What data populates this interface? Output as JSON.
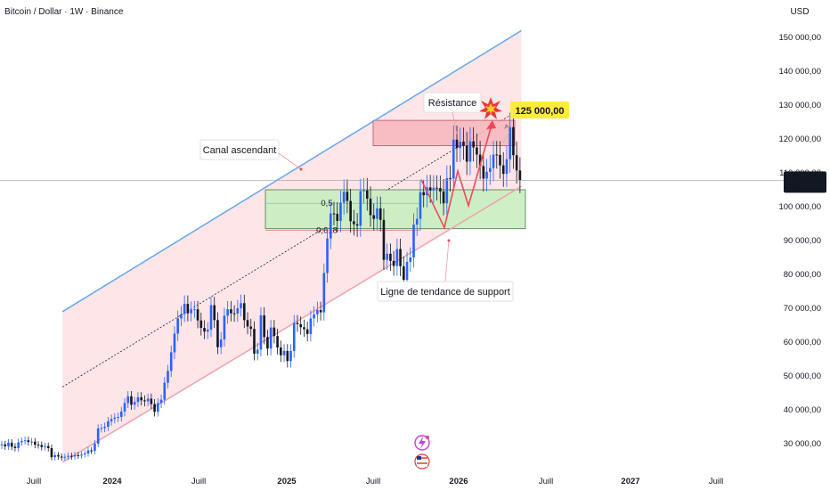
{
  "chart_data": {
    "type": "candlestick",
    "title": "Bitcoin / Dollar · 1W · Binance",
    "currency": "USD",
    "ylim": [
      24000,
      158000
    ],
    "y_ticks": [
      {
        "value": 30000,
        "label": "30 000,00"
      },
      {
        "value": 40000,
        "label": "40 000,00"
      },
      {
        "value": 50000,
        "label": "50 000,00"
      },
      {
        "value": 60000,
        "label": "60 000,00"
      },
      {
        "value": 70000,
        "label": "70 000,00"
      },
      {
        "value": 80000,
        "label": "80 000,00"
      },
      {
        "value": 90000,
        "label": "90 000,00"
      },
      {
        "value": 100000,
        "label": "100 000,00"
      },
      {
        "value": 110000,
        "label": "110 000,00"
      },
      {
        "value": 120000,
        "label": "120 000,00"
      },
      {
        "value": 130000,
        "label": "130 000,00"
      },
      {
        "value": 140000,
        "label": "140 000,00"
      },
      {
        "value": 150000,
        "label": "150 000,00"
      }
    ],
    "x_ticks": [
      {
        "date": "2023-07",
        "label": "Juill",
        "bold": false
      },
      {
        "date": "2024-01",
        "label": "2024",
        "bold": true
      },
      {
        "date": "2024-07",
        "label": "Juill",
        "bold": false
      },
      {
        "date": "2025-01",
        "label": "2025",
        "bold": true
      },
      {
        "date": "2025-07",
        "label": "Juill",
        "bold": false
      },
      {
        "date": "2026-01",
        "label": "2026",
        "bold": true
      },
      {
        "date": "2026-07",
        "label": "Juill",
        "bold": false
      },
      {
        "date": "2027-01",
        "label": "2027",
        "bold": true
      },
      {
        "date": "2027-07",
        "label": "Juill",
        "bold": false
      }
    ],
    "last_price": {
      "label": "107 783,91",
      "value": 107783.91,
      "countdown": "5d 15h"
    },
    "colors": {
      "up": "#2962ff",
      "down": "#131722",
      "channel_fill": "#fde2e6",
      "upper_line": "#64a8f0",
      "lower_line": "#f4a0ac",
      "resistance_zone": "#f7b7bd",
      "support_zone": "#c8efc2",
      "projection": "#f0485a",
      "target_bg": "#ffeb3b"
    },
    "weekly_closes": [
      29800,
      29200,
      30300,
      29100,
      28700,
      30400,
      30800,
      31000,
      30500,
      30600,
      29700,
      29600,
      29000,
      29300,
      28700,
      26000,
      26600,
      26200,
      25900,
      26100,
      26400,
      26200,
      26600,
      26500,
      26800,
      27100,
      28000,
      27900,
      30000,
      34500,
      34600,
      35000,
      36600,
      37300,
      37700,
      37900,
      39500,
      42000,
      44000,
      41500,
      42300,
      43700,
      42800,
      42500,
      43300,
      41700,
      39400,
      42000,
      43000,
      48000,
      51500,
      57000,
      62500,
      67000,
      68300,
      71300,
      68500,
      69600,
      69700,
      66400,
      64200,
      63100,
      63700,
      70900,
      66500,
      58500,
      60800,
      67800,
      69700,
      68500,
      68400,
      70000,
      71500,
      66500,
      64600,
      63900,
      56600,
      57800,
      67900,
      61500,
      58100,
      64300,
      61800,
      58400,
      56100,
      57400,
      54400,
      57400,
      65700,
      65300,
      64400,
      63800,
      62400,
      67000,
      68200,
      69500,
      68800,
      80400,
      90600,
      98000,
      97900,
      95800,
      101200,
      104400,
      101700,
      95700,
      94800,
      94400,
      104600,
      104800,
      102400,
      97500,
      96400,
      99500,
      96100,
      84300,
      86100,
      84000,
      82500,
      87500,
      82400,
      78400,
      83700,
      85000,
      94700,
      96400,
      104300,
      103400,
      105700,
      104800,
      105600,
      105500,
      104500,
      101000,
      108400,
      108300,
      119800,
      117300,
      119200,
      118000,
      113300,
      119300,
      117500,
      115400,
      112000,
      108300,
      110300,
      111400,
      115400,
      115300,
      112200,
      109700,
      114000,
      123500,
      115200,
      110700,
      107783.91
    ],
    "channel": {
      "upper": [
        {
          "date": "2023-09",
          "value": 69000
        },
        {
          "date": "2026-05",
          "value": 152000
        }
      ],
      "lower": [
        {
          "date": "2023-09",
          "value": 24500
        },
        {
          "date": "2026-05",
          "value": 106000
        }
      ]
    },
    "fib_levels": [
      {
        "label": "0,5",
        "value": 101000
      },
      {
        "label": "0,618",
        "value": 93000
      }
    ],
    "zones": {
      "resistance": {
        "top": 125500,
        "bottom": 118000
      },
      "support": {
        "top": 105000,
        "bottom": 93500
      }
    },
    "projection_points": [
      108000,
      93800,
      110500,
      100300,
      125000
    ],
    "annotations": {
      "resistance": "Résistance",
      "target": "125 000,00",
      "channel": "Canal ascendant",
      "support_line": "Ligne de tendance de support"
    }
  }
}
